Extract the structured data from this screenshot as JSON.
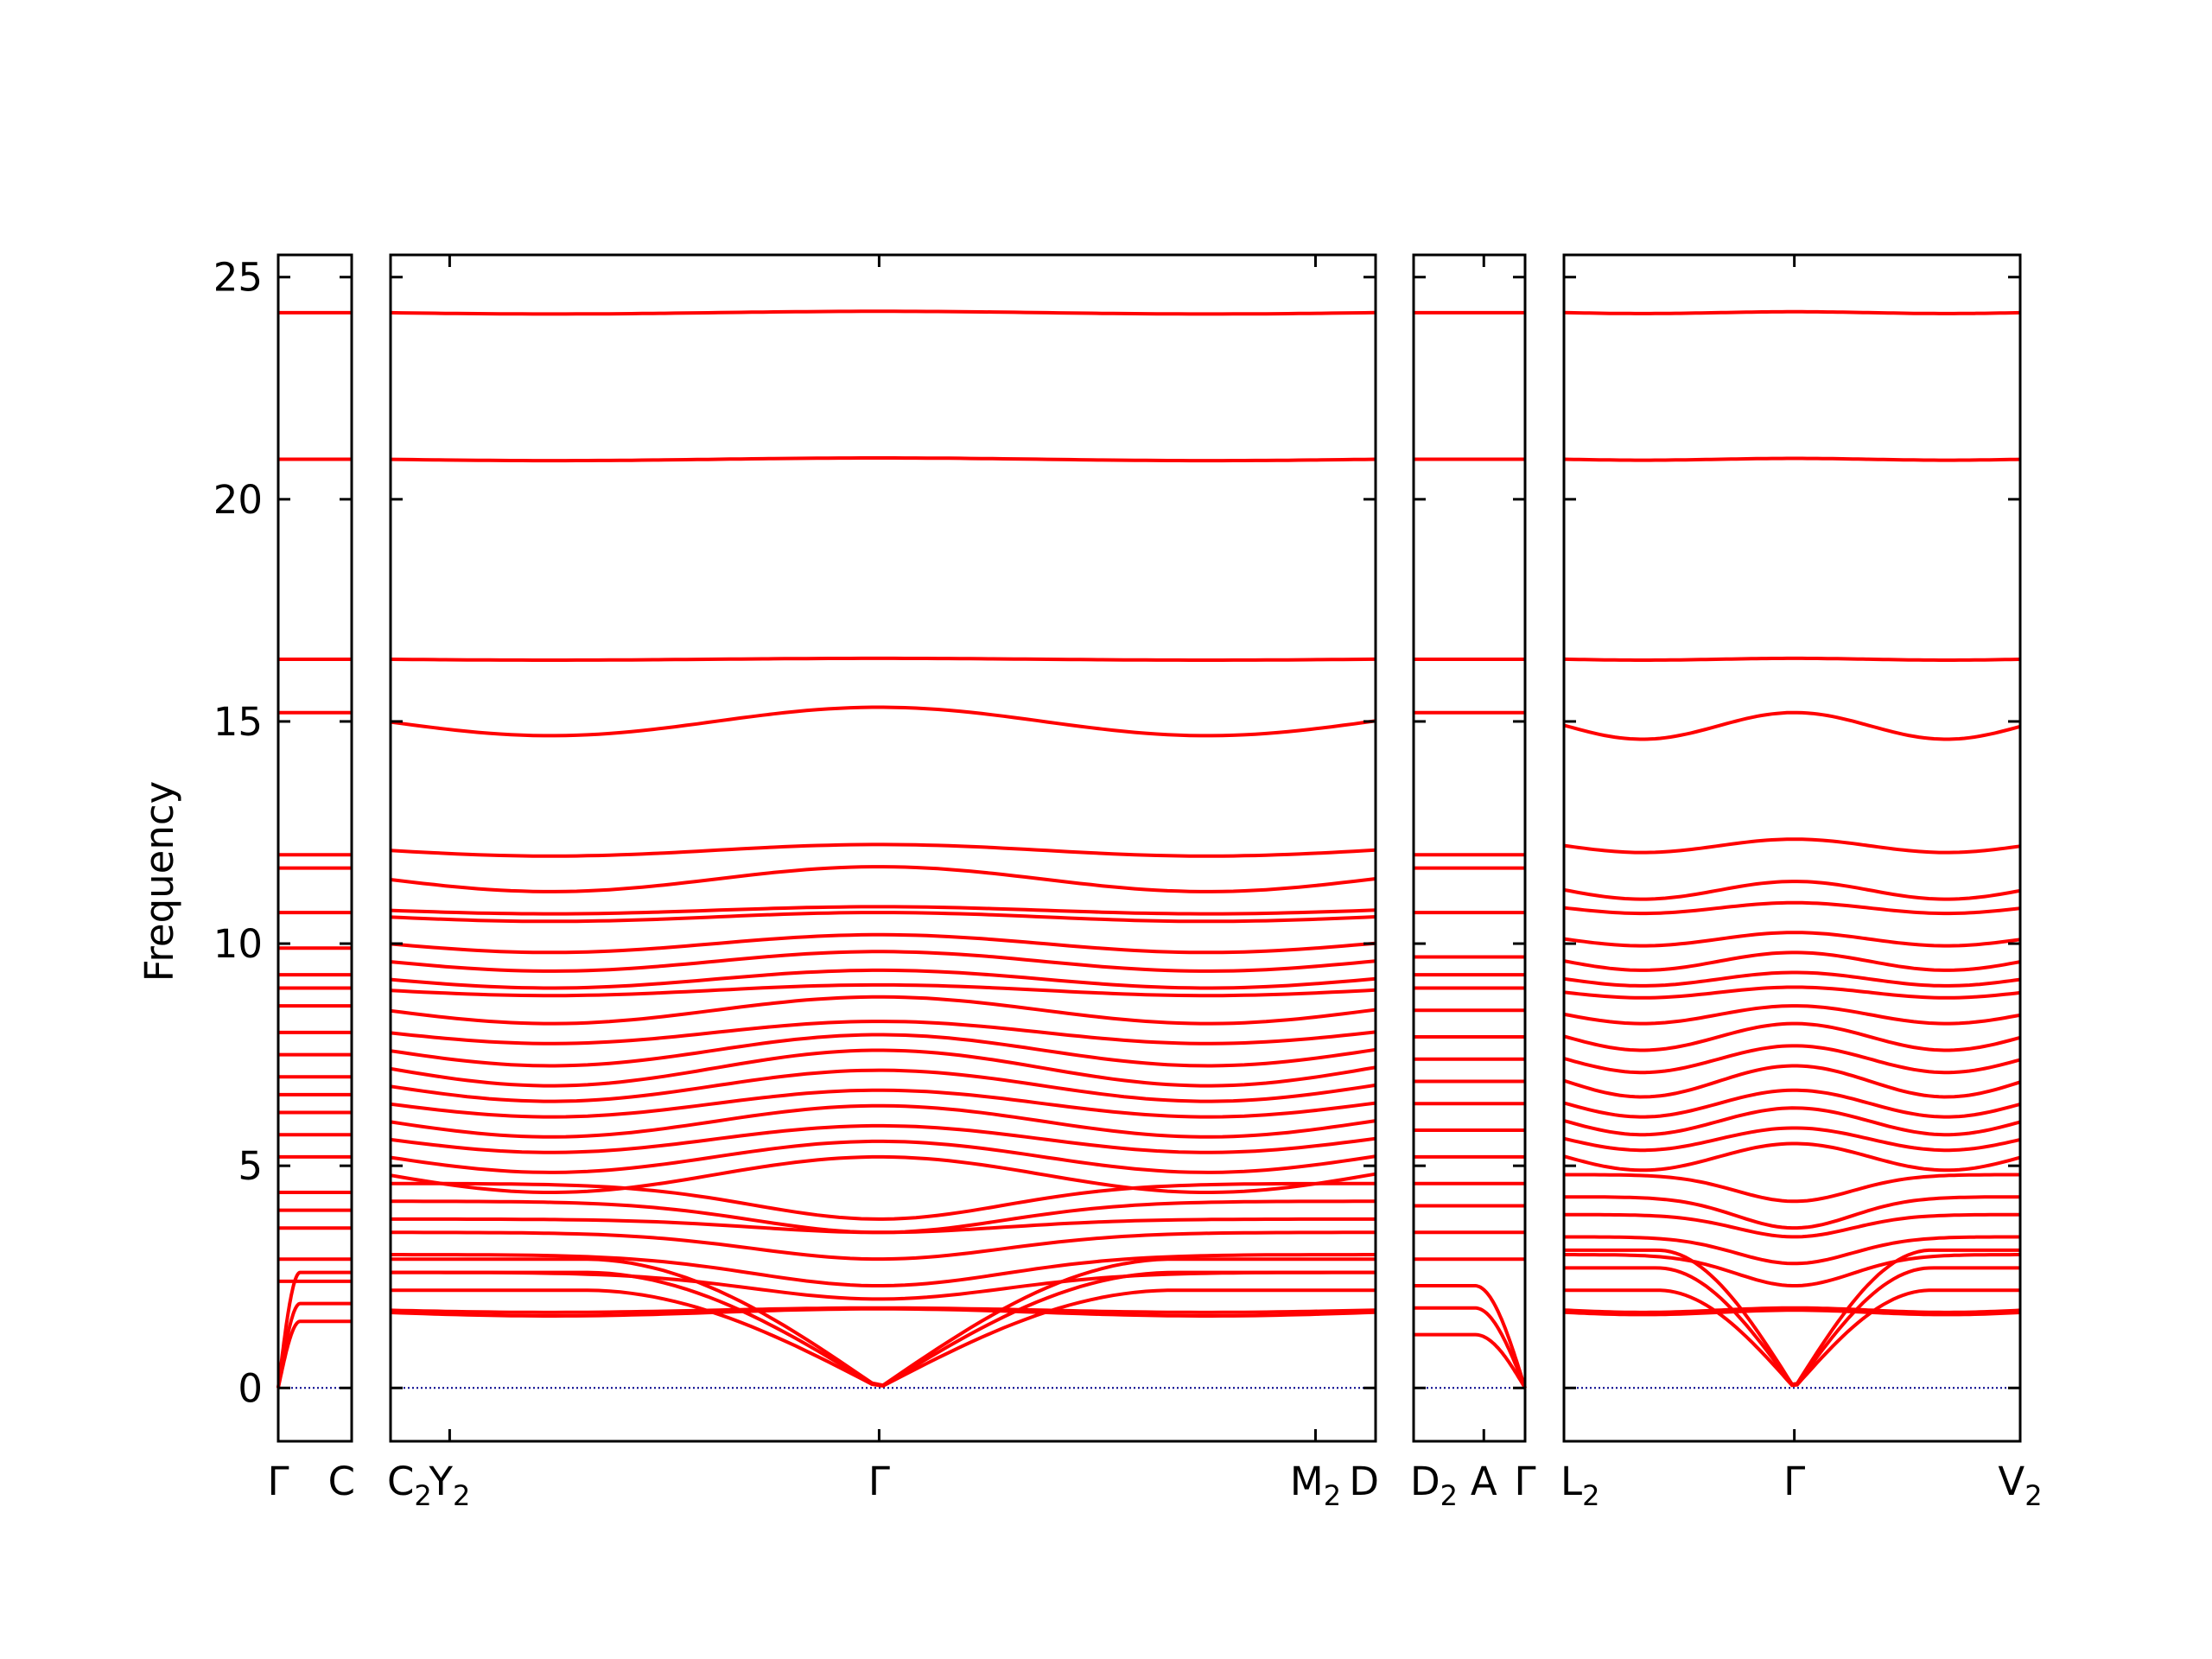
{
  "chart_data": {
    "type": "line",
    "ylabel": "Frequency",
    "ylim": [
      -1.2,
      25.5
    ],
    "yticks": [
      0,
      5,
      10,
      15,
      20,
      25
    ],
    "ytick_labels": [
      "0",
      "5",
      "10",
      "15",
      "20",
      "25"
    ],
    "grid": false,
    "line_color": "#ff0000",
    "zero_line_color": "#00008b",
    "panels": [
      {
        "name": "Γ–C",
        "xticks": [
          {
            "label": "Γ",
            "sub": "",
            "pos": 0.0
          },
          {
            "label": "C",
            "sub": "",
            "pos": 1.0
          }
        ],
        "bands": [
          {
            "kind": "flat",
            "value": 24.2
          },
          {
            "kind": "flat",
            "value": 20.9
          },
          {
            "kind": "flat",
            "value": 16.4
          },
          {
            "kind": "flat",
            "value": 15.2
          },
          {
            "kind": "flat",
            "value": 12.0
          },
          {
            "kind": "flat",
            "value": 11.7
          },
          {
            "kind": "flat",
            "value": 10.7
          },
          {
            "kind": "flat",
            "value": 9.9
          },
          {
            "kind": "flat",
            "value": 9.3
          },
          {
            "kind": "flat",
            "value": 9.0
          },
          {
            "kind": "flat",
            "value": 8.6
          },
          {
            "kind": "flat",
            "value": 8.0
          },
          {
            "kind": "flat",
            "value": 7.5
          },
          {
            "kind": "flat",
            "value": 7.0
          },
          {
            "kind": "flat",
            "value": 6.6
          },
          {
            "kind": "flat",
            "value": 6.2
          },
          {
            "kind": "flat",
            "value": 5.7
          },
          {
            "kind": "flat",
            "value": 5.2
          },
          {
            "kind": "flat",
            "value": 4.4
          },
          {
            "kind": "flat",
            "value": 4.0
          },
          {
            "kind": "flat",
            "value": 3.6
          },
          {
            "kind": "flat",
            "value": 2.9
          },
          {
            "kind": "flat",
            "value": 2.4
          },
          {
            "kind": "acoustic",
            "from": 0.0,
            "to": 2.6
          },
          {
            "kind": "acoustic",
            "from": 0.0,
            "to": 1.9
          },
          {
            "kind": "acoustic",
            "from": 0.0,
            "to": 1.5
          }
        ]
      },
      {
        "name": "C2–Y2–Γ–M2–D",
        "xticks": [
          {
            "label": "C",
            "sub": "2",
            "pos": 0.0
          },
          {
            "label": "Y",
            "sub": "2",
            "pos": 0.06
          },
          {
            "label": "Γ",
            "sub": "",
            "pos": 0.496
          },
          {
            "label": "M",
            "sub": "2",
            "pos": 0.939
          },
          {
            "label": "D",
            "sub": "",
            "pos": 1.0
          }
        ],
        "bands": [
          {
            "kind": "wave",
            "base": 24.2,
            "amp": 0.03
          },
          {
            "kind": "wave",
            "base": 20.9,
            "amp": 0.03
          },
          {
            "kind": "wave",
            "base": 16.4,
            "amp": 0.02
          },
          {
            "kind": "wave",
            "base": 15.0,
            "amp": 0.32
          },
          {
            "kind": "wave",
            "base": 12.1,
            "amp": 0.13
          },
          {
            "kind": "wave",
            "base": 11.45,
            "amp": 0.28
          },
          {
            "kind": "wave",
            "base": 10.75,
            "amp": 0.08
          },
          {
            "kind": "wave",
            "base": 10.6,
            "amp": 0.1
          },
          {
            "kind": "wave",
            "base": 10.0,
            "amp": 0.2
          },
          {
            "kind": "wave",
            "base": 9.6,
            "amp": 0.22
          },
          {
            "kind": "wave",
            "base": 9.2,
            "amp": 0.2
          },
          {
            "kind": "wave",
            "base": 8.95,
            "amp": 0.12
          },
          {
            "kind": "wave",
            "base": 8.5,
            "amp": 0.3
          },
          {
            "kind": "wave",
            "base": 8.0,
            "amp": 0.25
          },
          {
            "kind": "wave",
            "base": 7.6,
            "amp": 0.35
          },
          {
            "kind": "wave",
            "base": 7.2,
            "amp": 0.4
          },
          {
            "kind": "wave",
            "base": 6.8,
            "amp": 0.35
          },
          {
            "kind": "wave",
            "base": 6.4,
            "amp": 0.3
          },
          {
            "kind": "wave",
            "base": 6.0,
            "amp": 0.35
          },
          {
            "kind": "wave",
            "base": 5.6,
            "amp": 0.3
          },
          {
            "kind": "wave",
            "base": 5.2,
            "amp": 0.35
          },
          {
            "kind": "wave",
            "base": 4.8,
            "amp": 0.4
          },
          {
            "kind": "dip",
            "base": 4.6,
            "amp": 0.8
          },
          {
            "kind": "dip",
            "base": 4.2,
            "amp": 0.7
          },
          {
            "kind": "dip",
            "base": 3.8,
            "amp": 0.3
          },
          {
            "kind": "dip",
            "base": 3.5,
            "amp": 0.6
          },
          {
            "kind": "dip",
            "base": 3.0,
            "amp": 0.7
          },
          {
            "kind": "dip",
            "base": 2.6,
            "amp": 0.6
          },
          {
            "kind": "wave",
            "base": 1.75,
            "amp": 0.05
          },
          {
            "kind": "wave",
            "base": 1.7,
            "amp": 0.08
          },
          {
            "kind": "acoustic",
            "from": 0.0,
            "to": 2.9
          },
          {
            "kind": "acoustic",
            "from": 0.0,
            "to": 2.6
          },
          {
            "kind": "acoustic",
            "from": 0.0,
            "to": 2.2
          }
        ]
      },
      {
        "name": "D2–A–Γ",
        "xticks": [
          {
            "label": "D",
            "sub": "2",
            "pos": 0.0
          },
          {
            "label": "A",
            "sub": "",
            "pos": 0.63
          },
          {
            "label": "Γ",
            "sub": "",
            "pos": 1.0
          }
        ],
        "bands": [
          {
            "kind": "flat",
            "value": 24.2
          },
          {
            "kind": "flat",
            "value": 20.9
          },
          {
            "kind": "flat",
            "value": 16.4
          },
          {
            "kind": "flat",
            "value": 15.2
          },
          {
            "kind": "flat",
            "value": 12.0
          },
          {
            "kind": "flat",
            "value": 11.7
          },
          {
            "kind": "flat",
            "value": 10.7
          },
          {
            "kind": "flat",
            "value": 9.7
          },
          {
            "kind": "flat",
            "value": 9.3
          },
          {
            "kind": "flat",
            "value": 9.0
          },
          {
            "kind": "flat",
            "value": 8.5
          },
          {
            "kind": "flat",
            "value": 7.9
          },
          {
            "kind": "flat",
            "value": 7.4
          },
          {
            "kind": "flat",
            "value": 6.9
          },
          {
            "kind": "flat",
            "value": 6.4
          },
          {
            "kind": "flat",
            "value": 5.8
          },
          {
            "kind": "flat",
            "value": 5.2
          },
          {
            "kind": "flat",
            "value": 4.6
          },
          {
            "kind": "flat",
            "value": 4.1
          },
          {
            "kind": "flat",
            "value": 3.5
          },
          {
            "kind": "flat",
            "value": 2.9
          },
          {
            "kind": "acoustic_rev",
            "from": 0.0,
            "to": 1.2
          },
          {
            "kind": "acoustic_rev",
            "from": 0.0,
            "to": 1.8
          },
          {
            "kind": "acoustic_rev",
            "from": 0.0,
            "to": 2.3
          }
        ]
      },
      {
        "name": "L2–Γ–V2",
        "xticks": [
          {
            "label": "L",
            "sub": "2",
            "pos": 0.0
          },
          {
            "label": "Γ",
            "sub": "",
            "pos": 0.505
          },
          {
            "label": "V",
            "sub": "2",
            "pos": 1.0
          }
        ],
        "bands": [
          {
            "kind": "wave",
            "base": 24.2,
            "amp": 0.02
          },
          {
            "kind": "wave",
            "base": 20.9,
            "amp": 0.02
          },
          {
            "kind": "wave",
            "base": 16.4,
            "amp": 0.02
          },
          {
            "kind": "wave",
            "base": 14.9,
            "amp": 0.3
          },
          {
            "kind": "wave",
            "base": 12.2,
            "amp": 0.15
          },
          {
            "kind": "wave",
            "base": 11.2,
            "amp": 0.2
          },
          {
            "kind": "wave",
            "base": 10.8,
            "amp": 0.12
          },
          {
            "kind": "wave",
            "base": 10.1,
            "amp": 0.15
          },
          {
            "kind": "wave",
            "base": 9.6,
            "amp": 0.2
          },
          {
            "kind": "wave",
            "base": 9.2,
            "amp": 0.15
          },
          {
            "kind": "wave",
            "base": 8.9,
            "amp": 0.12
          },
          {
            "kind": "wave",
            "base": 8.4,
            "amp": 0.2
          },
          {
            "kind": "wave",
            "base": 7.9,
            "amp": 0.3
          },
          {
            "kind": "wave",
            "base": 7.4,
            "amp": 0.3
          },
          {
            "kind": "wave",
            "base": 6.9,
            "amp": 0.35
          },
          {
            "kind": "wave",
            "base": 6.4,
            "amp": 0.3
          },
          {
            "kind": "wave",
            "base": 6.0,
            "amp": 0.3
          },
          {
            "kind": "wave",
            "base": 5.6,
            "amp": 0.25
          },
          {
            "kind": "wave",
            "base": 5.2,
            "amp": 0.3
          },
          {
            "kind": "dip",
            "base": 4.8,
            "amp": 0.6
          },
          {
            "kind": "dip",
            "base": 4.3,
            "amp": 0.7
          },
          {
            "kind": "dip",
            "base": 3.9,
            "amp": 0.5
          },
          {
            "kind": "dip",
            "base": 3.4,
            "amp": 0.6
          },
          {
            "kind": "dip",
            "base": 3.0,
            "amp": 0.7
          },
          {
            "kind": "wave",
            "base": 1.75,
            "amp": 0.05
          },
          {
            "kind": "wave",
            "base": 1.7,
            "amp": 0.05
          },
          {
            "kind": "acoustic",
            "from": 0.0,
            "to": 3.1
          },
          {
            "kind": "acoustic",
            "from": 0.0,
            "to": 2.7
          },
          {
            "kind": "acoustic",
            "from": 0.0,
            "to": 2.2
          }
        ]
      }
    ]
  }
}
